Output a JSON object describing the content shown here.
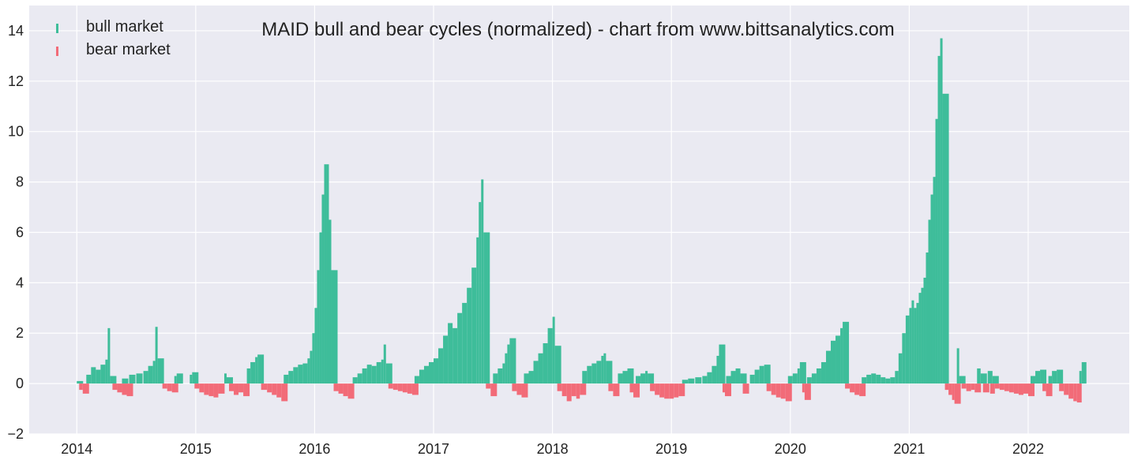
{
  "chart_data": {
    "type": "bar",
    "title": "MAID bull and bear cycles (normalized)  - chart from www.bittsanalytics.com",
    "xlabel": "",
    "ylabel": "",
    "xlim": [
      2013.6,
      2022.85
    ],
    "ylim": [
      -2,
      15
    ],
    "x_ticks": [
      2014,
      2015,
      2016,
      2017,
      2018,
      2019,
      2020,
      2021,
      2022
    ],
    "x_tick_labels": [
      "2014",
      "2015",
      "2016",
      "2017",
      "2018",
      "2019",
      "2020",
      "2021",
      "2022"
    ],
    "y_ticks": [
      -2,
      0,
      2,
      4,
      6,
      8,
      10,
      12,
      14
    ],
    "y_tick_labels": [
      "−2",
      "0",
      "2",
      "4",
      "6",
      "8",
      "10",
      "12",
      "14"
    ],
    "grid": true,
    "legend": {
      "placement": "top-left",
      "entries": [
        "bull market",
        "bear market"
      ]
    },
    "colors": {
      "bull": "#3ebd9a",
      "bear": "#f26b78",
      "background": "#eaeaf2",
      "grid": "#ffffff"
    },
    "series": [
      {
        "name": "bull market",
        "color": "#3ebd9a",
        "points": [
          [
            2014.0,
            0.1
          ],
          [
            2014.08,
            0.35
          ],
          [
            2014.12,
            0.65
          ],
          [
            2014.16,
            0.55
          ],
          [
            2014.2,
            0.75
          ],
          [
            2014.24,
            0.95
          ],
          [
            2014.26,
            2.2
          ],
          [
            2014.28,
            0.3
          ],
          [
            2014.38,
            0.2
          ],
          [
            2014.44,
            0.35
          ],
          [
            2014.5,
            0.4
          ],
          [
            2014.56,
            0.5
          ],
          [
            2014.6,
            0.7
          ],
          [
            2014.64,
            0.9
          ],
          [
            2014.66,
            2.25
          ],
          [
            2014.68,
            1.0
          ],
          [
            2014.82,
            0.3
          ],
          [
            2014.84,
            0.4
          ],
          [
            2014.95,
            0.35
          ],
          [
            2014.97,
            0.45
          ],
          [
            2015.24,
            0.4
          ],
          [
            2015.26,
            0.25
          ],
          [
            2015.43,
            0.6
          ],
          [
            2015.46,
            0.85
          ],
          [
            2015.5,
            1.05
          ],
          [
            2015.52,
            1.15
          ],
          [
            2015.74,
            0.35
          ],
          [
            2015.78,
            0.5
          ],
          [
            2015.82,
            0.65
          ],
          [
            2015.86,
            0.75
          ],
          [
            2015.9,
            0.8
          ],
          [
            2015.94,
            1.0
          ],
          [
            2015.96,
            1.3
          ],
          [
            2015.98,
            2.0
          ],
          [
            2016.0,
            3.0
          ],
          [
            2016.02,
            4.5
          ],
          [
            2016.04,
            6.0
          ],
          [
            2016.06,
            7.5
          ],
          [
            2016.08,
            8.7
          ],
          [
            2016.1,
            8.7
          ],
          [
            2016.12,
            6.5
          ],
          [
            2016.14,
            4.5
          ],
          [
            2016.32,
            0.25
          ],
          [
            2016.36,
            0.4
          ],
          [
            2016.4,
            0.6
          ],
          [
            2016.44,
            0.75
          ],
          [
            2016.48,
            0.7
          ],
          [
            2016.52,
            0.85
          ],
          [
            2016.56,
            0.95
          ],
          [
            2016.58,
            1.55
          ],
          [
            2016.6,
            0.8
          ],
          [
            2016.84,
            0.3
          ],
          [
            2016.88,
            0.55
          ],
          [
            2016.92,
            0.7
          ],
          [
            2016.96,
            0.85
          ],
          [
            2017.0,
            1.0
          ],
          [
            2017.04,
            1.4
          ],
          [
            2017.08,
            1.9
          ],
          [
            2017.12,
            2.4
          ],
          [
            2017.16,
            2.2
          ],
          [
            2017.2,
            2.8
          ],
          [
            2017.24,
            3.2
          ],
          [
            2017.28,
            3.8
          ],
          [
            2017.32,
            4.6
          ],
          [
            2017.36,
            5.8
          ],
          [
            2017.38,
            7.2
          ],
          [
            2017.4,
            8.1
          ],
          [
            2017.42,
            6.0
          ],
          [
            2017.5,
            0.4
          ],
          [
            2017.54,
            0.6
          ],
          [
            2017.58,
            0.8
          ],
          [
            2017.6,
            1.2
          ],
          [
            2017.62,
            1.55
          ],
          [
            2017.64,
            1.8
          ],
          [
            2017.76,
            0.4
          ],
          [
            2017.8,
            0.5
          ],
          [
            2017.84,
            0.9
          ],
          [
            2017.88,
            1.2
          ],
          [
            2017.92,
            1.6
          ],
          [
            2017.96,
            2.2
          ],
          [
            2018.0,
            2.65
          ],
          [
            2018.02,
            1.5
          ],
          [
            2018.25,
            0.5
          ],
          [
            2018.29,
            0.7
          ],
          [
            2018.33,
            0.8
          ],
          [
            2018.37,
            0.9
          ],
          [
            2018.41,
            1.1
          ],
          [
            2018.43,
            1.2
          ],
          [
            2018.45,
            0.9
          ],
          [
            2018.55,
            0.4
          ],
          [
            2018.59,
            0.5
          ],
          [
            2018.63,
            0.6
          ],
          [
            2018.7,
            0.3
          ],
          [
            2018.74,
            0.4
          ],
          [
            2018.78,
            0.5
          ],
          [
            2018.8,
            0.4
          ],
          [
            2019.09,
            0.15
          ],
          [
            2019.14,
            0.2
          ],
          [
            2019.2,
            0.25
          ],
          [
            2019.26,
            0.3
          ],
          [
            2019.3,
            0.45
          ],
          [
            2019.34,
            0.7
          ],
          [
            2019.38,
            1.1
          ],
          [
            2019.4,
            1.55
          ],
          [
            2019.46,
            0.3
          ],
          [
            2019.5,
            0.5
          ],
          [
            2019.54,
            0.6
          ],
          [
            2019.58,
            0.4
          ],
          [
            2019.66,
            0.35
          ],
          [
            2019.7,
            0.55
          ],
          [
            2019.74,
            0.7
          ],
          [
            2019.78,
            0.75
          ],
          [
            2019.98,
            0.3
          ],
          [
            2020.02,
            0.4
          ],
          [
            2020.06,
            0.6
          ],
          [
            2020.08,
            0.85
          ],
          [
            2020.14,
            0.25
          ],
          [
            2020.18,
            0.4
          ],
          [
            2020.22,
            0.6
          ],
          [
            2020.26,
            0.85
          ],
          [
            2020.3,
            1.3
          ],
          [
            2020.34,
            1.7
          ],
          [
            2020.38,
            1.9
          ],
          [
            2020.42,
            2.2
          ],
          [
            2020.44,
            2.45
          ],
          [
            2020.6,
            0.25
          ],
          [
            2020.64,
            0.35
          ],
          [
            2020.68,
            0.4
          ],
          [
            2020.72,
            0.35
          ],
          [
            2020.76,
            0.25
          ],
          [
            2020.8,
            0.2
          ],
          [
            2020.84,
            0.25
          ],
          [
            2020.88,
            0.5
          ],
          [
            2020.91,
            1.2
          ],
          [
            2020.94,
            2.0
          ],
          [
            2020.97,
            2.7
          ],
          [
            2021.0,
            3.0
          ],
          [
            2021.02,
            3.3
          ],
          [
            2021.04,
            3.0
          ],
          [
            2021.06,
            3.2
          ],
          [
            2021.08,
            3.6
          ],
          [
            2021.1,
            3.8
          ],
          [
            2021.12,
            4.2
          ],
          [
            2021.14,
            5.2
          ],
          [
            2021.16,
            6.5
          ],
          [
            2021.18,
            7.5
          ],
          [
            2021.2,
            8.2
          ],
          [
            2021.22,
            10.5
          ],
          [
            2021.24,
            13.0
          ],
          [
            2021.26,
            13.7
          ],
          [
            2021.28,
            11.5
          ],
          [
            2021.4,
            1.4
          ],
          [
            2021.42,
            0.3
          ],
          [
            2021.57,
            0.6
          ],
          [
            2021.6,
            0.4
          ],
          [
            2021.66,
            0.5
          ],
          [
            2021.7,
            0.3
          ],
          [
            2022.02,
            0.3
          ],
          [
            2022.06,
            0.5
          ],
          [
            2022.1,
            0.55
          ],
          [
            2022.17,
            0.3
          ],
          [
            2022.2,
            0.5
          ],
          [
            2022.24,
            0.55
          ],
          [
            2022.43,
            0.5
          ],
          [
            2022.45,
            0.85
          ]
        ]
      },
      {
        "name": "bear market",
        "color": "#f26b78",
        "points": [
          [
            2014.02,
            -0.25
          ],
          [
            2014.05,
            -0.4
          ],
          [
            2014.3,
            -0.25
          ],
          [
            2014.34,
            -0.35
          ],
          [
            2014.38,
            -0.45
          ],
          [
            2014.42,
            -0.5
          ],
          [
            2014.72,
            -0.2
          ],
          [
            2014.76,
            -0.3
          ],
          [
            2014.8,
            -0.35
          ],
          [
            2014.99,
            -0.2
          ],
          [
            2015.03,
            -0.35
          ],
          [
            2015.07,
            -0.45
          ],
          [
            2015.11,
            -0.5
          ],
          [
            2015.15,
            -0.55
          ],
          [
            2015.19,
            -0.4
          ],
          [
            2015.28,
            -0.3
          ],
          [
            2015.32,
            -0.45
          ],
          [
            2015.36,
            -0.35
          ],
          [
            2015.4,
            -0.5
          ],
          [
            2015.55,
            -0.25
          ],
          [
            2015.6,
            -0.35
          ],
          [
            2015.64,
            -0.45
          ],
          [
            2015.68,
            -0.55
          ],
          [
            2015.72,
            -0.7
          ],
          [
            2016.16,
            -0.3
          ],
          [
            2016.2,
            -0.4
          ],
          [
            2016.24,
            -0.5
          ],
          [
            2016.28,
            -0.6
          ],
          [
            2016.62,
            -0.2
          ],
          [
            2016.66,
            -0.25
          ],
          [
            2016.7,
            -0.3
          ],
          [
            2016.74,
            -0.35
          ],
          [
            2016.78,
            -0.4
          ],
          [
            2016.82,
            -0.45
          ],
          [
            2017.44,
            -0.2
          ],
          [
            2017.48,
            -0.5
          ],
          [
            2017.66,
            -0.3
          ],
          [
            2017.7,
            -0.45
          ],
          [
            2017.74,
            -0.55
          ],
          [
            2018.04,
            -0.3
          ],
          [
            2018.08,
            -0.5
          ],
          [
            2018.12,
            -0.7
          ],
          [
            2018.16,
            -0.5
          ],
          [
            2018.2,
            -0.6
          ],
          [
            2018.23,
            -0.45
          ],
          [
            2018.47,
            -0.3
          ],
          [
            2018.51,
            -0.5
          ],
          [
            2018.65,
            -0.35
          ],
          [
            2018.68,
            -0.55
          ],
          [
            2018.82,
            -0.3
          ],
          [
            2018.86,
            -0.45
          ],
          [
            2018.9,
            -0.55
          ],
          [
            2018.94,
            -0.6
          ],
          [
            2018.98,
            -0.6
          ],
          [
            2019.02,
            -0.55
          ],
          [
            2019.06,
            -0.5
          ],
          [
            2019.43,
            -0.35
          ],
          [
            2019.45,
            -0.5
          ],
          [
            2019.6,
            -0.4
          ],
          [
            2019.8,
            -0.3
          ],
          [
            2019.84,
            -0.45
          ],
          [
            2019.88,
            -0.55
          ],
          [
            2019.92,
            -0.6
          ],
          [
            2019.96,
            -0.7
          ],
          [
            2020.1,
            -0.35
          ],
          [
            2020.12,
            -0.65
          ],
          [
            2020.46,
            -0.2
          ],
          [
            2020.5,
            -0.35
          ],
          [
            2020.54,
            -0.45
          ],
          [
            2020.58,
            -0.5
          ],
          [
            2021.3,
            -0.25
          ],
          [
            2021.33,
            -0.45
          ],
          [
            2021.36,
            -0.65
          ],
          [
            2021.38,
            -0.8
          ],
          [
            2021.44,
            -0.2
          ],
          [
            2021.48,
            -0.3
          ],
          [
            2021.52,
            -0.25
          ],
          [
            2021.55,
            -0.35
          ],
          [
            2021.62,
            -0.35
          ],
          [
            2021.68,
            -0.4
          ],
          [
            2021.72,
            -0.2
          ],
          [
            2021.76,
            -0.25
          ],
          [
            2021.8,
            -0.3
          ],
          [
            2021.84,
            -0.35
          ],
          [
            2021.88,
            -0.4
          ],
          [
            2021.92,
            -0.45
          ],
          [
            2021.96,
            -0.4
          ],
          [
            2022.0,
            -0.5
          ],
          [
            2022.12,
            -0.3
          ],
          [
            2022.15,
            -0.5
          ],
          [
            2022.26,
            -0.3
          ],
          [
            2022.3,
            -0.45
          ],
          [
            2022.34,
            -0.6
          ],
          [
            2022.38,
            -0.7
          ],
          [
            2022.41,
            -0.75
          ]
        ]
      }
    ]
  }
}
